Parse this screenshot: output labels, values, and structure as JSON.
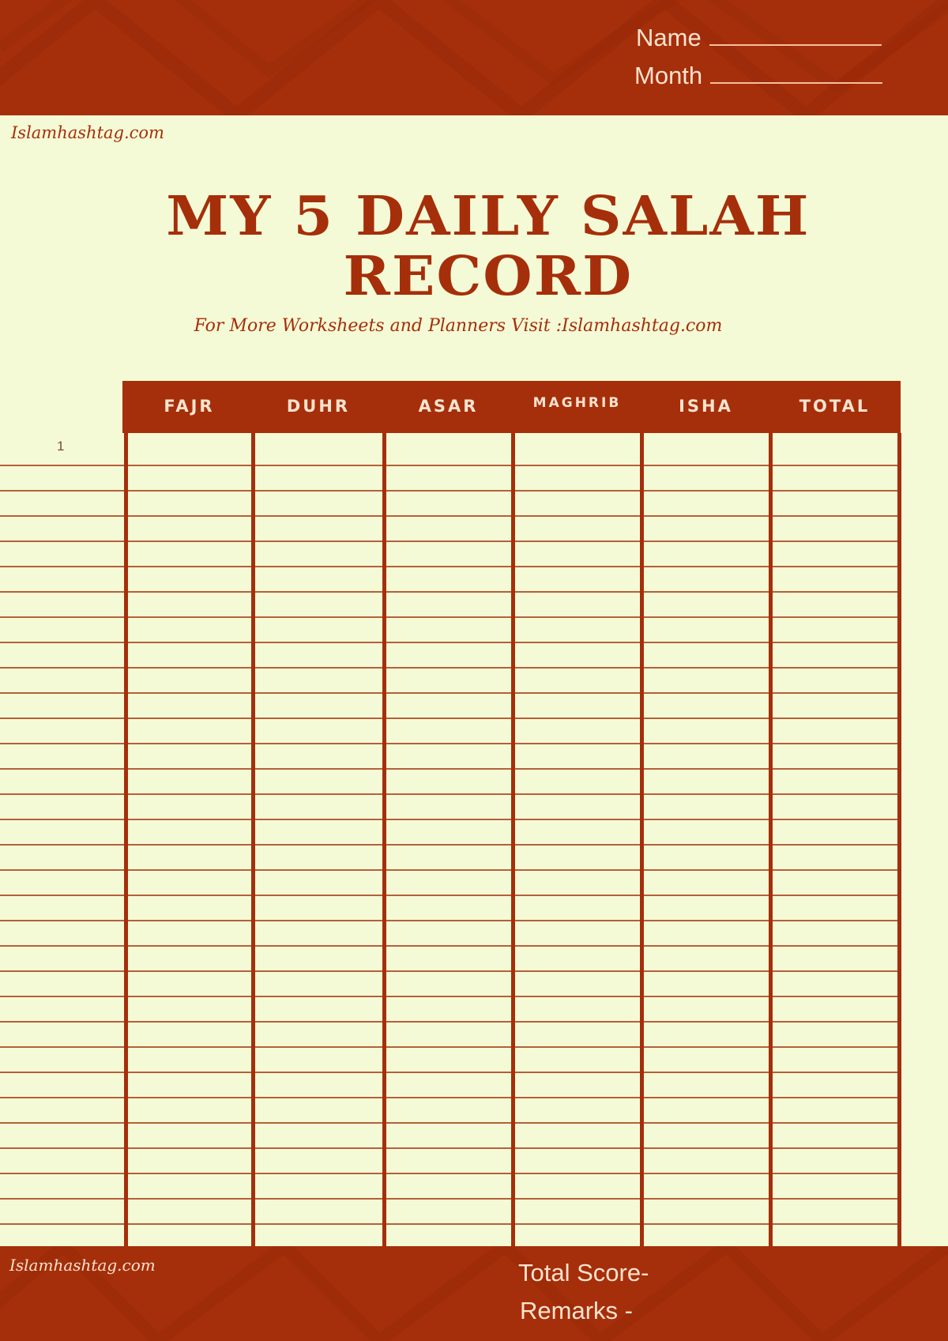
{
  "header": {
    "name_label": "Name",
    "month_label": "Month"
  },
  "watermark_top": "Islamhashtag.com",
  "title_line1": "MY 5 DAILY SALAH",
  "title_line2": "RECORD",
  "subtitle": "For More Worksheets and Planners Visit :Islamhashtag.com",
  "table": {
    "columns": [
      "FAJR",
      "DUHR",
      "ASAR",
      "MAGHRIB",
      "ISHA",
      "TOTAL"
    ],
    "first_day": "1"
  },
  "footer": {
    "watermark": "Islamhashtag.com",
    "total_score_label": "Total Score-",
    "remarks_label": "Remarks -"
  },
  "colors": {
    "brand": "#a52f0a",
    "paper": "#f5fad6",
    "text_light": "#fbe3cf"
  }
}
